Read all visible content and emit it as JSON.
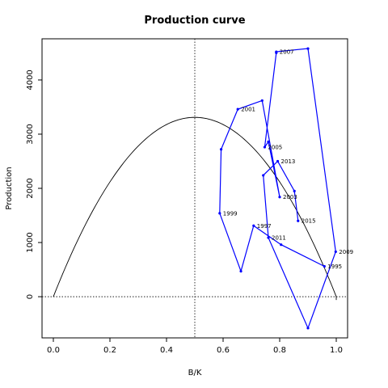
{
  "chart_data": {
    "type": "line",
    "title": "Production curve",
    "xlabel": "B/K",
    "ylabel": "Production",
    "xlim": [
      -0.04,
      1.04
    ],
    "ylim": [
      -760,
      4760
    ],
    "x_ticks": [
      0.0,
      0.2,
      0.4,
      0.6,
      0.8,
      1.0
    ],
    "x_tick_labels": [
      "0.0",
      "0.2",
      "0.4",
      "0.6",
      "0.8",
      "1.0"
    ],
    "y_ticks": [
      0,
      1000,
      2000,
      3000,
      4000
    ],
    "y_tick_labels": [
      "0",
      "1000",
      "2000",
      "3000",
      "4000"
    ],
    "reference_lines": {
      "vertical_x": 0.5,
      "horizontal_y": 0
    },
    "production_curve": {
      "formula": "4*MSY*(B/K)*(1-B/K)",
      "msy": 3310,
      "x_range": [
        0.0,
        1.0
      ],
      "color": "#000000"
    },
    "series": [
      {
        "color": "#0000ff",
        "points": [
          {
            "x": 0.958,
            "y": 560,
            "label": "1995"
          },
          {
            "x": 0.805,
            "y": 960,
            "label": ""
          },
          {
            "x": 0.708,
            "y": 1310,
            "label": "1997"
          },
          {
            "x": 0.663,
            "y": 470,
            "label": ""
          },
          {
            "x": 0.588,
            "y": 1540,
            "label": "1999"
          },
          {
            "x": 0.593,
            "y": 2720,
            "label": ""
          },
          {
            "x": 0.652,
            "y": 3460,
            "label": "2001"
          },
          {
            "x": 0.738,
            "y": 3620,
            "label": ""
          },
          {
            "x": 0.8,
            "y": 1840,
            "label": "2003"
          },
          {
            "x": 0.76,
            "y": 2860,
            "label": ""
          },
          {
            "x": 0.747,
            "y": 2760,
            "label": "2005"
          },
          {
            "x": 0.788,
            "y": 4500,
            "label": ""
          },
          {
            "x": 0.788,
            "y": 4520,
            "label": "2007"
          },
          {
            "x": 0.9,
            "y": 4580,
            "label": ""
          },
          {
            "x": 0.998,
            "y": 830,
            "label": "2009"
          },
          {
            "x": 0.9,
            "y": -580,
            "label": ""
          },
          {
            "x": 0.76,
            "y": 1090,
            "label": "2011"
          },
          {
            "x": 0.742,
            "y": 2240,
            "label": ""
          },
          {
            "x": 0.793,
            "y": 2500,
            "label": "2013"
          },
          {
            "x": 0.852,
            "y": 1950,
            "label": ""
          },
          {
            "x": 0.865,
            "y": 1400,
            "label": "2015"
          }
        ]
      }
    ]
  }
}
